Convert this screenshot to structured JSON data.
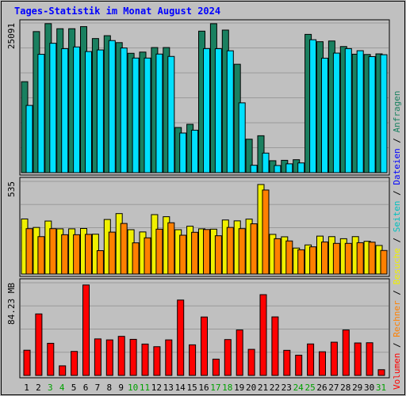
{
  "title": "Tages-Statistik im Monat August 2024",
  "colors": {
    "background": "#c0c0c0",
    "plot_background": "#c0c0c0",
    "gridline": "#9a9a9a",
    "hits": "#1a8060",
    "files": "#00e0ff",
    "pages": "#f0f000",
    "visits": "#ff8000",
    "kbytes": "#ff0000",
    "weekday_label": "#000000",
    "weekend_label": "#00a000"
  },
  "chart_data": [
    {
      "type": "bar",
      "panel": "top",
      "ylabel_value": "25091",
      "ylim": [
        0,
        25091
      ],
      "categories": [
        "1",
        "2",
        "3",
        "4",
        "5",
        "6",
        "7",
        "8",
        "9",
        "10",
        "11",
        "12",
        "13",
        "14",
        "15",
        "16",
        "17",
        "18",
        "19",
        "20",
        "21",
        "22",
        "23",
        "24",
        "25",
        "26",
        "27",
        "28",
        "29",
        "30",
        "31"
      ],
      "weekend_days": [
        "3",
        "4",
        "10",
        "11",
        "17",
        "18",
        "24",
        "25",
        "31"
      ],
      "series": [
        {
          "name": "Anfragen",
          "values": [
            15250,
            23650,
            24980,
            24130,
            24130,
            24480,
            22480,
            22960,
            21800,
            20010,
            20210,
            20970,
            20970,
            7570,
            8110,
            23720,
            24970,
            23900,
            18170,
            5610,
            6190,
            2000,
            2070,
            2170,
            23180,
            21950,
            22070,
            21140,
            19860,
            19810,
            19910
          ]
        },
        {
          "name": "Dateien",
          "values": [
            11270,
            19840,
            21690,
            20780,
            21070,
            20300,
            20570,
            22140,
            20900,
            19210,
            19210,
            19880,
            19480,
            6640,
            7120,
            20790,
            20780,
            20430,
            11700,
            1240,
            3280,
            1200,
            1480,
            1630,
            22280,
            19190,
            20040,
            20790,
            20440,
            19450,
            19770
          ]
        }
      ]
    },
    {
      "type": "bar",
      "panel": "middle",
      "ylabel_value": "535",
      "ylim": [
        0,
        535
      ],
      "categories": [
        "1",
        "2",
        "3",
        "4",
        "5",
        "6",
        "7",
        "8",
        "9",
        "10",
        "11",
        "12",
        "13",
        "14",
        "15",
        "16",
        "17",
        "18",
        "19",
        "20",
        "21",
        "22",
        "23",
        "24",
        "25",
        "26",
        "27",
        "28",
        "29",
        "30",
        "31"
      ],
      "series": [
        {
          "name": "Seiten",
          "values": [
            318,
            269,
            306,
            261,
            261,
            263,
            230,
            315,
            349,
            256,
            243,
            343,
            331,
            256,
            276,
            261,
            259,
            312,
            307,
            317,
            517,
            229,
            215,
            150,
            168,
            219,
            216,
            204,
            216,
            189,
            165
          ]
        },
        {
          "name": "Besuche",
          "values": [
            262,
            216,
            262,
            227,
            227,
            229,
            135,
            242,
            292,
            180,
            209,
            259,
            296,
            224,
            241,
            257,
            221,
            269,
            262,
            290,
            485,
            204,
            191,
            140,
            157,
            185,
            177,
            177,
            181,
            184,
            136
          ]
        }
      ]
    },
    {
      "type": "bar",
      "panel": "bottom",
      "ylabel_value": "84.23 MB",
      "ylim": [
        0,
        84.23
      ],
      "categories": [
        "1",
        "2",
        "3",
        "4",
        "5",
        "6",
        "7",
        "8",
        "9",
        "10",
        "11",
        "12",
        "13",
        "14",
        "15",
        "16",
        "17",
        "18",
        "19",
        "20",
        "21",
        "22",
        "23",
        "24",
        "25",
        "26",
        "27",
        "28",
        "29",
        "30",
        "31"
      ],
      "series": [
        {
          "name": "Volumen",
          "values": [
            22.9,
            55.9,
            29.2,
            8.7,
            21.8,
            82.2,
            33.2,
            32.3,
            35.5,
            32.8,
            28.5,
            26.1,
            32.3,
            68.5,
            27.8,
            53.1,
            14.8,
            32.6,
            41.3,
            23.7,
            73.4,
            53.2,
            22.8,
            18.4,
            28.6,
            21.5,
            30.2,
            41.3,
            29.5,
            29.7,
            5.2
          ]
        }
      ]
    }
  ],
  "legend": [
    "Volumen",
    "Rechner",
    "Besuche",
    "Seiten",
    "Dateien",
    "Anfragen"
  ],
  "legend_separator": "/"
}
